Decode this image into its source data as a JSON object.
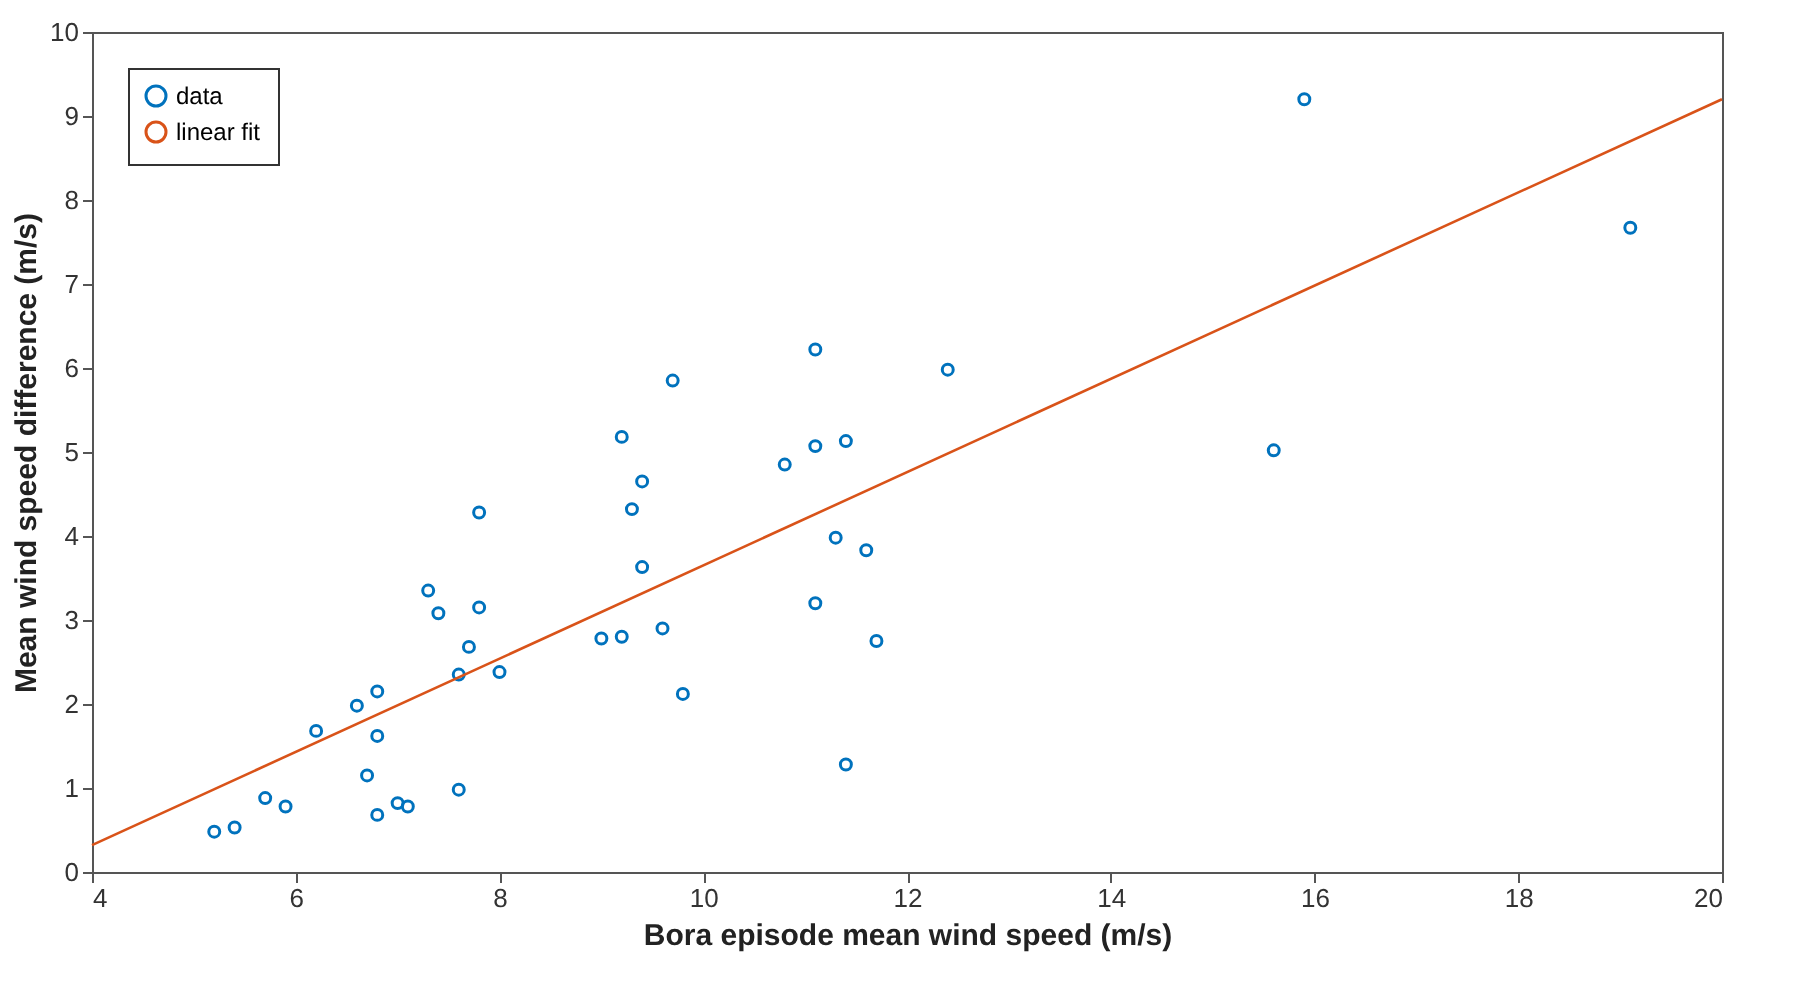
{
  "chart_data": {
    "type": "scatter",
    "xlabel": "Bora episode mean wind speed (m/s)",
    "ylabel": "Mean wind speed difference (m/s)",
    "xlim": [
      4,
      20
    ],
    "xticks": [
      4,
      6,
      8,
      10,
      12,
      14,
      16,
      18,
      20
    ],
    "ylim": [
      0,
      10
    ],
    "yticks": [
      0,
      1,
      2,
      3,
      4,
      5,
      6,
      7,
      8,
      9,
      10
    ],
    "grid": false,
    "legend": "top left",
    "series": [
      {
        "name": "data",
        "color": "#0072bd",
        "marker": "circle",
        "x": [
          5.2,
          5.4,
          5.7,
          5.9,
          6.2,
          6.6,
          6.7,
          6.8,
          6.8,
          6.8,
          7.0,
          7.1,
          7.3,
          7.4,
          7.6,
          7.6,
          7.7,
          7.8,
          7.8,
          8.0,
          9.0,
          9.2,
          9.2,
          9.3,
          9.4,
          9.4,
          9.6,
          9.7,
          9.8,
          10.8,
          11.1,
          11.1,
          11.1,
          11.3,
          11.4,
          11.4,
          11.6,
          11.7,
          12.4,
          15.6,
          15.9,
          19.1
        ],
        "values": [
          0.48,
          0.53,
          0.88,
          0.78,
          1.68,
          1.98,
          1.15,
          2.15,
          1.62,
          0.68,
          0.82,
          0.78,
          3.35,
          3.08,
          2.35,
          0.98,
          2.68,
          4.28,
          3.15,
          2.38,
          2.78,
          2.8,
          5.18,
          4.32,
          4.65,
          3.63,
          2.9,
          5.85,
          2.12,
          4.85,
          6.22,
          5.07,
          3.2,
          3.98,
          5.13,
          1.28,
          3.83,
          2.75,
          5.98,
          5.02,
          9.2,
          7.67
        ]
      },
      {
        "name": "linear fit",
        "color": "#d95319",
        "type": "line",
        "marker": "none",
        "x": [
          4,
          20
        ],
        "values": [
          0.32,
          9.2
        ]
      }
    ]
  }
}
